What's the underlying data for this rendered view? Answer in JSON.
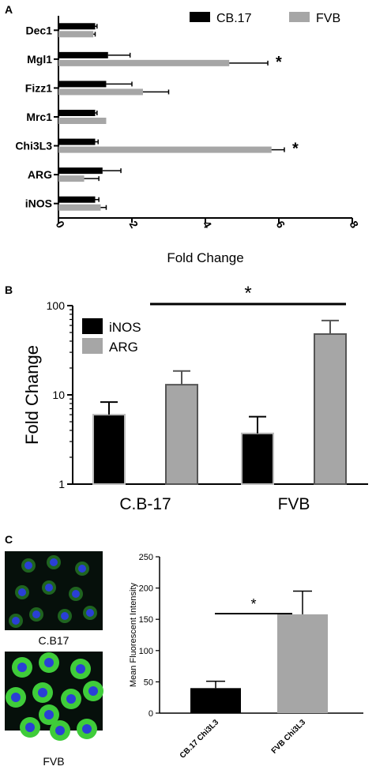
{
  "panels": {
    "a": {
      "letter": "A"
    },
    "b": {
      "letter": "B"
    },
    "c": {
      "letter": "C",
      "image_labels": [
        "C.B17",
        "FVB"
      ]
    }
  },
  "colors": {
    "black_series": "#000000",
    "gray_series": "#a6a6a6",
    "cell_nucleus": "#2a3fd6",
    "cell_body": "#3fcc3a"
  },
  "chart_data": [
    {
      "id": "A",
      "type": "bar",
      "orientation": "horizontal",
      "categories": [
        "Dec1",
        "Mgl1",
        "Fizz1",
        "Mrc1",
        "Chi3L3",
        "ARG",
        "iNOS"
      ],
      "series": [
        {
          "name": "CB.17",
          "color": "#000000",
          "values": [
            1.0,
            1.35,
            1.3,
            1.0,
            1.0,
            1.2,
            1.0
          ],
          "errors": [
            0.05,
            0.6,
            0.7,
            0.05,
            0.08,
            0.5,
            0.1
          ]
        },
        {
          "name": "FVB",
          "color": "#a6a6a6",
          "values": [
            0.95,
            4.65,
            2.3,
            1.3,
            5.8,
            0.7,
            1.15
          ],
          "errors": [
            0.05,
            1.05,
            0.7,
            0.0,
            0.35,
            0.4,
            0.15
          ]
        }
      ],
      "significance": [
        "",
        "*",
        "",
        "",
        "*",
        "",
        ""
      ],
      "xlabel": "Fold Change",
      "xlim": [
        0,
        8
      ],
      "xticks": [
        "0",
        "2",
        "4",
        "6",
        "8"
      ],
      "legend_position": "top-right"
    },
    {
      "id": "B",
      "type": "bar",
      "scale": "log",
      "categories": [
        "C.B-17",
        "FVB"
      ],
      "series": [
        {
          "name": "iNOS",
          "color": "#000000",
          "values": [
            6.0,
            3.7
          ],
          "errors": [
            2.3,
            2.0
          ]
        },
        {
          "name": "ARG",
          "color": "#a6a6a6",
          "values": [
            13.0,
            48.0
          ],
          "errors": [
            5.5,
            20.0
          ]
        }
      ],
      "ylabel": "Fold Change",
      "ylim": [
        1,
        100
      ],
      "yticks": [
        "1",
        "10",
        "100"
      ],
      "significance_bracket": {
        "label": "*",
        "from": "C.B-17",
        "to": "FVB"
      },
      "legend_position": "top-left"
    },
    {
      "id": "C",
      "type": "bar",
      "categories": [
        "CB.17 Chi3L3",
        "FVB Chi3L3"
      ],
      "values": [
        40,
        158
      ],
      "errors": [
        11,
        37
      ],
      "colors": [
        "#000000",
        "#a6a6a6"
      ],
      "ylabel": "Mean Fluorescent Intensity",
      "ylim": [
        0,
        250
      ],
      "yticks": [
        "0",
        "50",
        "100",
        "150",
        "200",
        "250"
      ],
      "significance_bracket": {
        "label": "*"
      }
    }
  ]
}
